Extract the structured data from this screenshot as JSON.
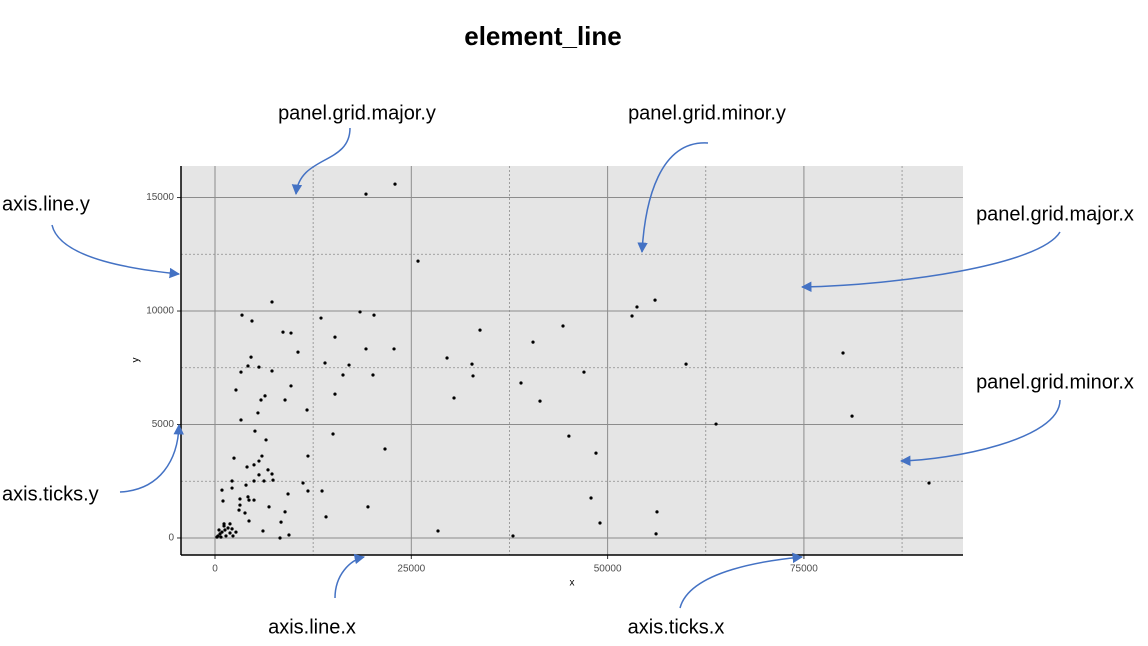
{
  "chart_data": {
    "type": "scatter",
    "title": "element_line",
    "x_label": "x",
    "y_label": "y",
    "xlim": [
      -4330,
      95260
    ],
    "ylim": [
      -750,
      16390
    ],
    "xticks": [
      0,
      25000,
      50000,
      75000
    ],
    "yticks": [
      0,
      5000,
      10000,
      15000
    ],
    "xminor": [
      12500,
      37500,
      62500,
      87500
    ],
    "yminor": [
      2500,
      7500,
      12500
    ],
    "grid": true,
    "color": "#000000",
    "annotation_color": "#4472c4",
    "annotations": [
      "panel.grid.major.y",
      "panel.grid.minor.y",
      "axis.line.y",
      "panel.grid.major.x",
      "panel.grid.minor.x",
      "axis.ticks.y",
      "axis.line.x",
      "axis.ticks.x"
    ],
    "x": [
      19230,
      22925,
      25855,
      7260,
      3440,
      4710,
      13500,
      18470,
      20250,
      8660,
      9680,
      15280,
      10570,
      19230,
      22800,
      4590,
      4200,
      5600,
      14010,
      17070,
      3310,
      7260,
      16300,
      20120,
      9680,
      2670,
      6370,
      5860,
      15280,
      8920,
      11720,
      5470,
      3310,
      5090,
      15030,
      6500,
      21650,
      11840,
      5980,
      2420,
      5600,
      4970,
      4080,
      6750,
      7260,
      5600,
      2170,
      4970,
      6240,
      3950,
      11210,
      7390,
      890,
      2170,
      13630,
      11840,
      9300,
      4200,
      4330,
      4970,
      3180,
      1020,
      3180,
      3060,
      3820,
      6880,
      8920,
      19480,
      4330,
      8410,
      14140,
      1150,
      6110,
      9420,
      8280,
      28400,
      37950,
      380,
      640,
      890,
      1270,
      1660,
      1910,
      2290,
      2670,
      1400,
      760,
      1150,
      1910,
      510,
      2170,
      250,
      33750,
      40500,
      44320,
      29550,
      32730,
      32860,
      30440,
      38970,
      41390,
      46990,
      45070,
      48520,
      47890,
      49030,
      53110,
      53740,
      56040,
      59990,
      63810,
      56290,
      56170,
      79980,
      81130,
      90930
    ],
    "y": [
      15150,
      15590,
      12200,
      10400,
      9820,
      9560,
      9690,
      9960,
      9820,
      9070,
      9030,
      8850,
      8190,
      8330,
      8330,
      7970,
      7580,
      7530,
      7710,
      7620,
      7310,
      7360,
      7180,
      7180,
      6700,
      6520,
      6260,
      6080,
      6340,
      6080,
      5640,
      5510,
      5200,
      4710,
      4580,
      4320,
      3920,
      3610,
      3610,
      3520,
      3390,
      3220,
      3130,
      3000,
      2820,
      2780,
      2510,
      2510,
      2510,
      2330,
      2420,
      2550,
      2110,
      2200,
      2070,
      2070,
      1940,
      1810,
      1670,
      1670,
      1720,
      1630,
      1450,
      1230,
      1100,
      1370,
      1150,
      1370,
      750,
      700,
      930,
      620,
      310,
      130,
      0,
      310,
      90,
      90,
      180,
      260,
      350,
      440,
      220,
      90,
      260,
      90,
      40,
      530,
      620,
      350,
      400,
      40,
      9160,
      8630,
      9340,
      7930,
      7660,
      7140,
      6170,
      6830,
      6030,
      7310,
      4490,
      3740,
      1760,
      660,
      9780,
      10180,
      10480,
      7660,
      5020,
      1150,
      180,
      8150,
      5370,
      2420
    ]
  }
}
